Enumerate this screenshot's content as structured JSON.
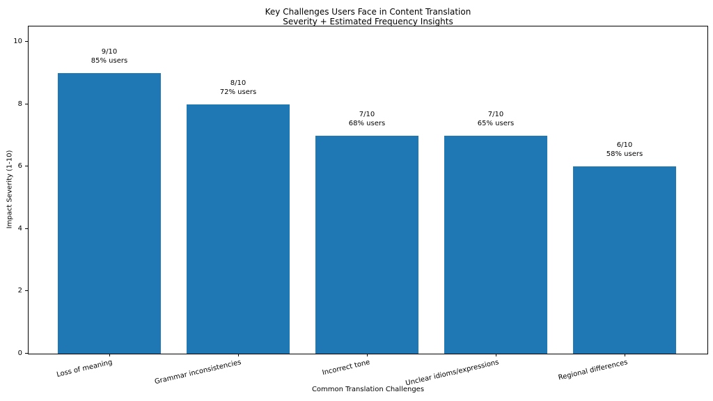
{
  "chart_data": {
    "type": "bar",
    "title_lines": [
      "Key Challenges Users Face in Content Translation",
      "Severity + Estimated Frequency Insights"
    ],
    "xlabel": "Common Translation Challenges",
    "ylabel": "Impact Severity (1-10)",
    "categories": [
      "Loss of meaning",
      "Grammar inconsistencies",
      "Incorrect tone",
      "Unclear idioms/expressions",
      "Regional differences"
    ],
    "values": [
      9,
      8,
      7,
      7,
      6
    ],
    "frequencies_pct": [
      85,
      72,
      68,
      65,
      58
    ],
    "annotations": [
      [
        "9/10",
        "85% users"
      ],
      [
        "8/10",
        "72% users"
      ],
      [
        "7/10",
        "68% users"
      ],
      [
        "7/10",
        "65% users"
      ],
      [
        "6/10",
        "58% users"
      ]
    ],
    "yticks": [
      0,
      2,
      4,
      6,
      8,
      10
    ],
    "ylim": [
      0,
      10.5
    ],
    "bar_color": "#1f77b4",
    "grid": false,
    "legend": null,
    "background_color": "#ffffff",
    "spine_color": "#000000"
  }
}
